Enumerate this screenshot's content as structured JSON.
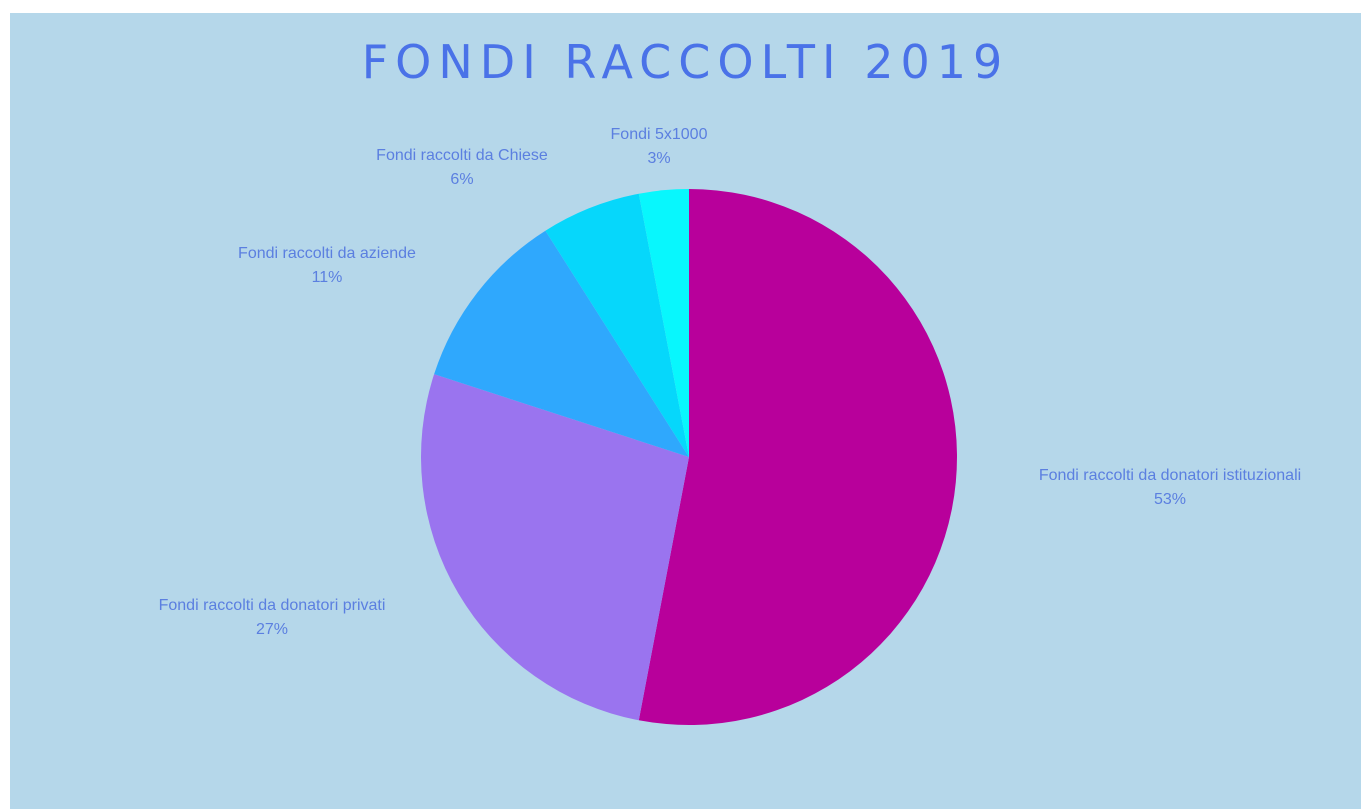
{
  "chart_data": {
    "type": "pie",
    "title": "FONDI RACCOLTI 2019",
    "slices": [
      {
        "label": "Fondi raccolti da donatori istituzionali",
        "value": 53,
        "value_label": "53%",
        "color": "#b8009b"
      },
      {
        "label": "Fondi raccolti da donatori privati",
        "value": 27,
        "value_label": "27%",
        "color": "#9a74ef"
      },
      {
        "label": "Fondi raccolti da aziende",
        "value": 11,
        "value_label": "11%",
        "color": "#2fa8fd"
      },
      {
        "label": "Fondi raccolti da Chiese",
        "value": 6,
        "value_label": "6%",
        "color": "#06d7fb"
      },
      {
        "label": "Fondi 5x1000",
        "value": 3,
        "value_label": "3%",
        "color": "#08f7fd"
      }
    ],
    "colors": {
      "background": "#b5d7ea",
      "title": "#4a72e8",
      "label": "#5b7fe0"
    }
  }
}
